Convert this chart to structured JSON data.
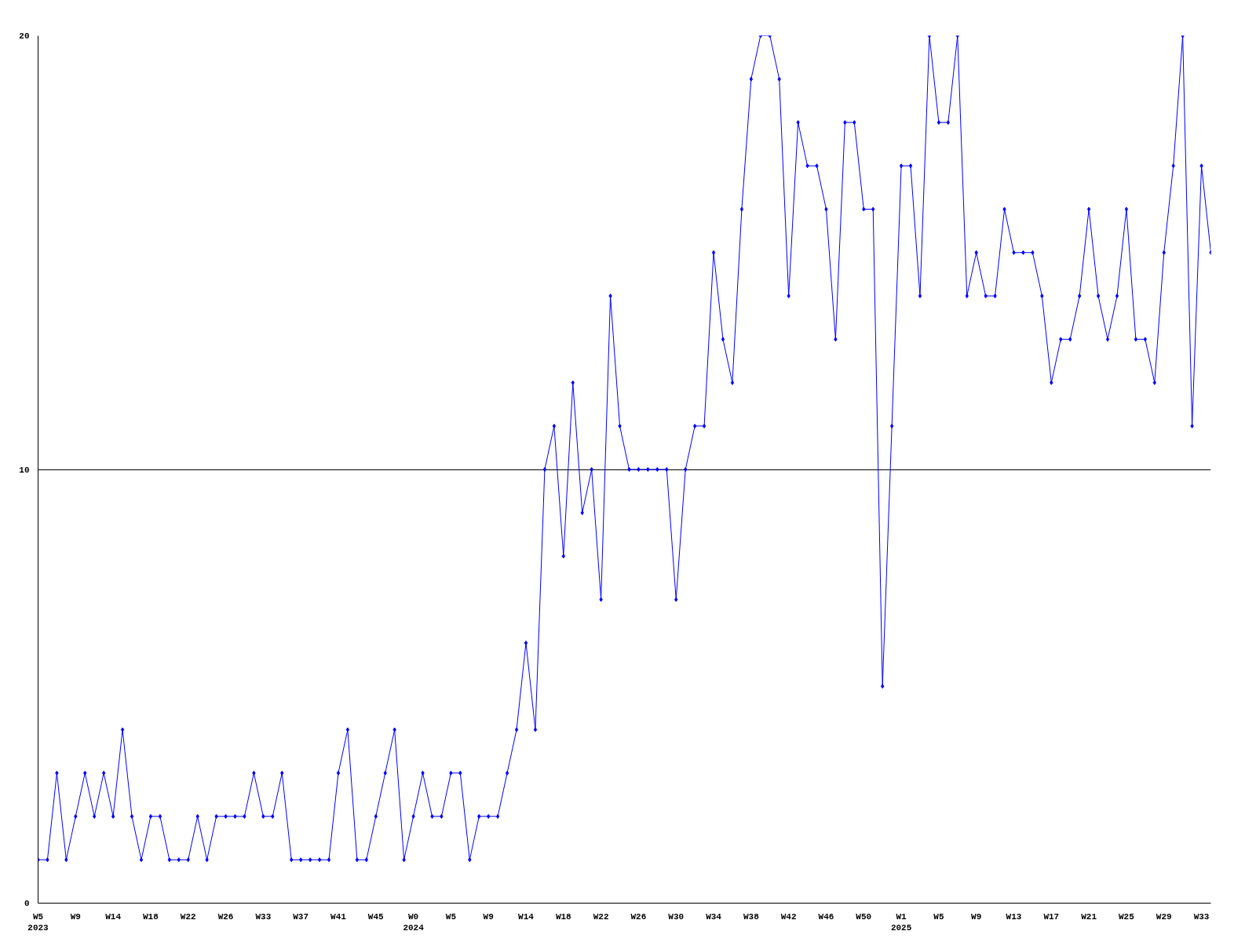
{
  "chart_data": {
    "type": "line",
    "categories": [
      "W5\n2023",
      null,
      null,
      null,
      "W9",
      null,
      null,
      null,
      "W14",
      null,
      null,
      null,
      "W18",
      null,
      null,
      null,
      "W22",
      null,
      null,
      null,
      "W26",
      null,
      null,
      null,
      "W33",
      null,
      null,
      null,
      "W37",
      null,
      null,
      null,
      "W41",
      null,
      null,
      null,
      "W45",
      null,
      null,
      null,
      "W0\n2024",
      null,
      null,
      null,
      "W5",
      null,
      null,
      null,
      "W9",
      null,
      null,
      null,
      "W14",
      null,
      null,
      null,
      "W18",
      null,
      null,
      null,
      "W22",
      null,
      null,
      null,
      "W26",
      null,
      null,
      null,
      "W30",
      null,
      null,
      null,
      "W34",
      null,
      null,
      null,
      "W38",
      null,
      null,
      null,
      "W42",
      null,
      null,
      null,
      "W46",
      null,
      null,
      null,
      "W50",
      null,
      null,
      null,
      "W1\n2025",
      null,
      null,
      null,
      "W5",
      null,
      null,
      null,
      "W9",
      null,
      null,
      null,
      "W13",
      null,
      null,
      null,
      "W17",
      null,
      null,
      null,
      "W21",
      null,
      null,
      null,
      "W25",
      null,
      null,
      null,
      "W29",
      null,
      null,
      null,
      "W33",
      null
    ],
    "values": [
      1,
      1,
      3,
      1,
      2,
      3,
      2,
      3,
      2,
      4,
      2,
      1,
      2,
      2,
      1,
      1,
      1,
      2,
      1,
      2,
      2,
      2,
      2,
      3,
      2,
      2,
      3,
      1,
      1,
      1,
      1,
      1,
      3,
      4,
      1,
      1,
      2,
      3,
      4,
      1,
      2,
      3,
      2,
      2,
      3,
      3,
      1,
      2,
      2,
      2,
      3,
      4,
      6,
      4,
      10,
      11,
      8,
      12,
      9,
      10,
      7,
      14,
      11,
      10,
      10,
      10,
      10,
      10,
      7,
      10,
      11,
      11,
      15,
      13,
      12,
      16,
      19,
      20,
      20,
      19,
      14,
      18,
      17,
      17,
      16,
      13,
      18,
      18,
      16,
      16,
      5,
      11,
      17,
      17,
      14,
      20,
      18,
      18,
      20,
      14,
      15,
      14,
      14,
      16,
      15,
      15,
      15,
      14,
      12,
      13,
      13,
      14,
      16,
      14,
      13,
      14,
      16,
      13,
      13,
      12,
      15,
      17,
      20,
      11,
      17,
      15
    ],
    "color": "#0000ff",
    "ylim": [
      0,
      20
    ],
    "yticks": [
      0,
      10,
      20
    ],
    "grid": "y",
    "marker": "diamond"
  }
}
